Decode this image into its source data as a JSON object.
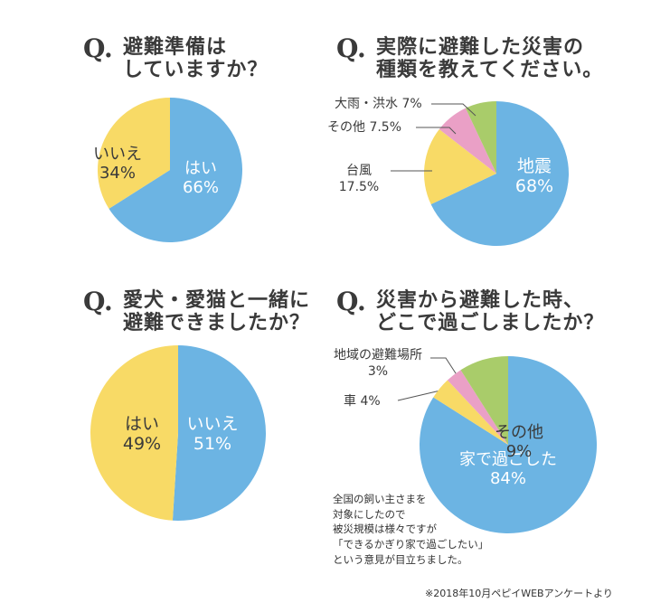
{
  "colors": {
    "blue": "#6CB4E3",
    "yellow": "#F8DA66",
    "pink": "#EAA0C6",
    "green": "#A9CC6A",
    "line": "#555555"
  },
  "q_mark": "Q.",
  "panels": {
    "p1": {
      "title": "避難準備は\nしていますか？"
    },
    "p2": {
      "title": "実際に避難した災害の\n種類を教えてください。"
    },
    "p3": {
      "title": "愛犬・愛猫と一緒に\n避難できましたか？"
    },
    "p4": {
      "title": "災害から避難した時、\nどこで過ごしましたか？"
    }
  },
  "ext_labels": {
    "p2_rain": "大雨・洪水 7%",
    "p2_other": "その他 7.5%",
    "p2_typhoon": "台風\n17.5%",
    "p4_local": "地域の避難場所\n3%",
    "p4_car": "車 4%"
  },
  "note": "全国の飼い主さまを\n対象にしたので\n被災規模は様々ですが\n「できるかぎり家で過ごしたい」\nという意見が目立ちました。",
  "footnote": "※2018年10月ペピイWEBアンケートより",
  "chart_data": [
    {
      "type": "pie",
      "title": "避難準備はしていますか？",
      "slices": [
        {
          "label": "はい",
          "value": 66,
          "value_label": "66%",
          "color": "#6CB4E3",
          "text_color": "#ffffff"
        },
        {
          "label": "いいえ",
          "value": 34,
          "value_label": "34%",
          "color": "#F8DA66",
          "text_color": "#3a3a3a"
        }
      ]
    },
    {
      "type": "pie",
      "title": "実際に避難した災害の種類を教えてください。",
      "slices": [
        {
          "label": "地震",
          "value": 68,
          "value_label": "68%",
          "color": "#6CB4E3",
          "text_color": "#ffffff"
        },
        {
          "label": "台風",
          "value": 17.5,
          "value_label": "17.5%",
          "color": "#F8DA66"
        },
        {
          "label": "その他",
          "value": 7.5,
          "value_label": "7.5%",
          "color": "#EAA0C6"
        },
        {
          "label": "大雨・洪水",
          "value": 7,
          "value_label": "7%",
          "color": "#A9CC6A"
        }
      ]
    },
    {
      "type": "pie",
      "title": "愛犬・愛猫と一緒に避難できましたか？",
      "slices": [
        {
          "label": "いいえ",
          "value": 51,
          "value_label": "51%",
          "color": "#6CB4E3",
          "text_color": "#ffffff"
        },
        {
          "label": "はい",
          "value": 49,
          "value_label": "49%",
          "color": "#F8DA66",
          "text_color": "#3a3a3a"
        }
      ]
    },
    {
      "type": "pie",
      "title": "災害から避難した時、どこで過ごしましたか？",
      "slices": [
        {
          "label": "家で過ごした",
          "value": 84,
          "value_label": "84%",
          "color": "#6CB4E3",
          "text_color": "#ffffff"
        },
        {
          "label": "車",
          "value": 4,
          "value_label": "4%",
          "color": "#F8DA66"
        },
        {
          "label": "地域の避難場所",
          "value": 3,
          "value_label": "3%",
          "color": "#EAA0C6"
        },
        {
          "label": "その他",
          "value": 9,
          "value_label": "9%",
          "color": "#A9CC6A",
          "text_color": "#3a3a3a"
        }
      ]
    }
  ]
}
